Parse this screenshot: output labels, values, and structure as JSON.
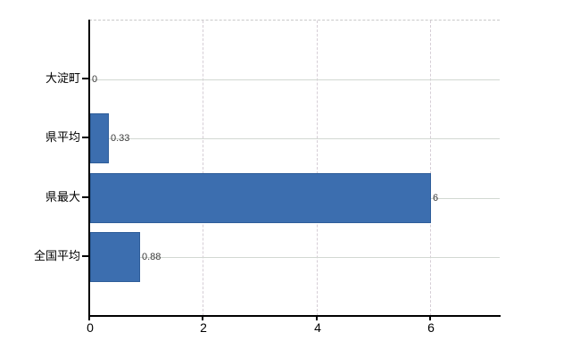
{
  "chart_data": {
    "type": "bar",
    "orientation": "horizontal",
    "title": "",
    "xlabel": "",
    "ylabel": "",
    "categories": [
      "大淀町",
      "県平均",
      "県最大",
      "全国平均"
    ],
    "values": [
      0,
      0.33,
      6,
      0.88
    ],
    "value_labels": [
      "0",
      "0.33",
      "6",
      "0.88"
    ],
    "x_ticks": [
      0,
      2,
      4,
      6
    ],
    "x_tick_labels": [
      "0",
      "2",
      "4",
      "6"
    ],
    "xlim": [
      0,
      7.22
    ],
    "grid": "on",
    "legend": "none",
    "colors": {
      "bar_fill": "#3c6eaf",
      "bar_border": "#2e5d99",
      "h_gridline": "#d2d8d2",
      "v_gridline": "#d6ced6",
      "top_border": "#c9c9c9",
      "axis": "#000000",
      "value_label": "#3c3c3c",
      "category_label": "#000000",
      "tick_label": "#000000",
      "background": "#ffffff"
    }
  }
}
